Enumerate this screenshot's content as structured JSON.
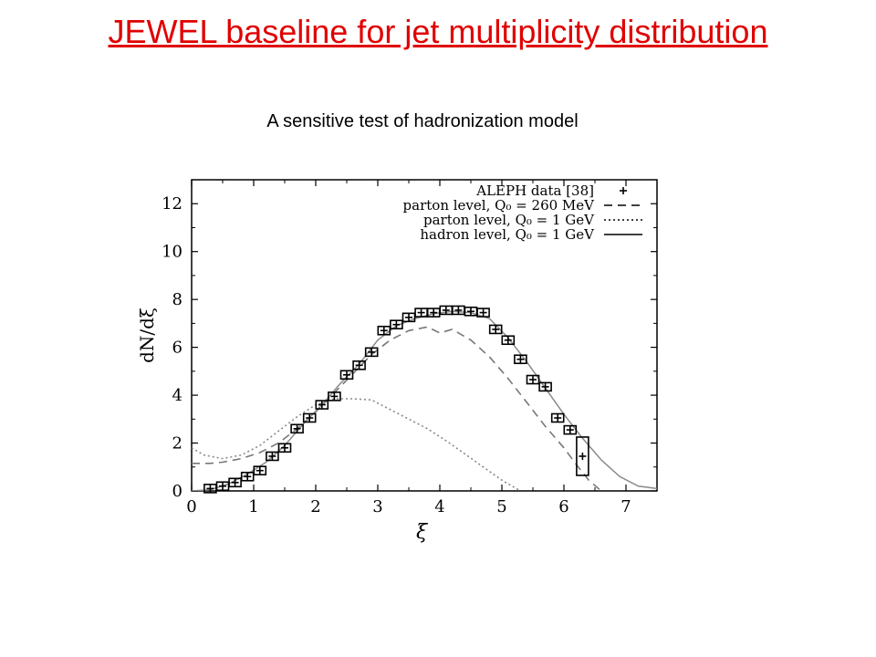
{
  "slide": {
    "title": "JEWEL baseline for jet multiplicity distribution",
    "subtitle": "A sensitive test of hadronization model"
  },
  "chart_data": {
    "type": "line",
    "xlabel": "ξ",
    "ylabel": "dN/dξ",
    "xlim": [
      0,
      7.5
    ],
    "ylim": [
      0,
      13
    ],
    "x_ticks": [
      "0",
      "1",
      "2",
      "3",
      "4",
      "5",
      "6",
      "7"
    ],
    "y_ticks": [
      "0",
      "2",
      "4",
      "6",
      "8",
      "10",
      "12"
    ],
    "legend": {
      "placement": "top-right",
      "entries": [
        "ALEPH data [38]",
        "parton level, Q₀ = 260 MeV",
        "parton level, Q₀ = 1 GeV",
        "hadron level, Q₀ = 1 GeV"
      ]
    },
    "series": [
      {
        "name": "ALEPH data [38]",
        "style": "points",
        "x": [
          0.3,
          0.5,
          0.7,
          0.9,
          1.1,
          1.3,
          1.5,
          1.7,
          1.9,
          2.1,
          2.3,
          2.5,
          2.7,
          2.9,
          3.1,
          3.3,
          3.5,
          3.7,
          3.9,
          4.1,
          4.3,
          4.5,
          4.7,
          4.9,
          5.1,
          5.3,
          5.5,
          5.7,
          5.9,
          6.1,
          6.3
        ],
        "y": [
          0.1,
          0.2,
          0.35,
          0.6,
          0.85,
          1.45,
          1.8,
          2.6,
          3.05,
          3.6,
          3.95,
          4.85,
          5.25,
          5.8,
          6.7,
          6.95,
          7.25,
          7.45,
          7.45,
          7.55,
          7.55,
          7.5,
          7.45,
          6.75,
          6.3,
          5.5,
          4.65,
          4.35,
          3.05,
          2.55,
          1.45
        ]
      },
      {
        "name": "parton level, Q₀ = 260 MeV",
        "style": "dashed",
        "x": [
          0.0,
          0.3,
          0.5,
          0.8,
          1.1,
          1.4,
          1.7,
          2.0,
          2.3,
          2.6,
          2.9,
          3.2,
          3.5,
          3.8,
          4.0,
          4.2,
          4.5,
          4.8,
          5.1,
          5.4,
          5.7,
          6.0,
          6.2,
          6.4,
          6.6
        ],
        "y": [
          1.15,
          1.15,
          1.2,
          1.35,
          1.6,
          2.0,
          2.6,
          3.3,
          4.1,
          4.9,
          5.7,
          6.3,
          6.7,
          6.85,
          6.6,
          6.75,
          6.3,
          5.6,
          4.7,
          3.7,
          2.7,
          1.8,
          1.1,
          0.45,
          0.0
        ]
      },
      {
        "name": "parton level, Q₀ = 1 GeV",
        "style": "dotted",
        "x": [
          0.0,
          0.2,
          0.5,
          0.8,
          1.1,
          1.4,
          1.7,
          2.0,
          2.3,
          2.6,
          2.9,
          3.2,
          3.5,
          3.8,
          4.1,
          4.4,
          4.7,
          5.0,
          5.3
        ],
        "y": [
          1.8,
          1.5,
          1.35,
          1.5,
          1.9,
          2.5,
          3.1,
          3.6,
          3.85,
          3.85,
          3.8,
          3.4,
          3.0,
          2.6,
          2.1,
          1.55,
          1.0,
          0.45,
          0.0
        ]
      },
      {
        "name": "hadron level, Q₀ = 1 GeV",
        "style": "solid",
        "x": [
          0.0,
          0.3,
          0.6,
          0.9,
          1.2,
          1.5,
          1.8,
          2.1,
          2.4,
          2.7,
          3.0,
          3.3,
          3.6,
          3.9,
          4.2,
          4.5,
          4.8,
          5.1,
          5.4,
          5.7,
          6.0,
          6.3,
          6.6,
          6.9,
          7.2,
          7.5
        ],
        "y": [
          0.0,
          0.05,
          0.3,
          0.7,
          1.2,
          1.9,
          2.8,
          3.6,
          4.5,
          5.3,
          6.3,
          6.9,
          7.2,
          7.4,
          7.5,
          7.45,
          7.2,
          6.4,
          5.4,
          4.3,
          3.2,
          2.2,
          1.3,
          0.6,
          0.2,
          0.1
        ]
      }
    ]
  }
}
